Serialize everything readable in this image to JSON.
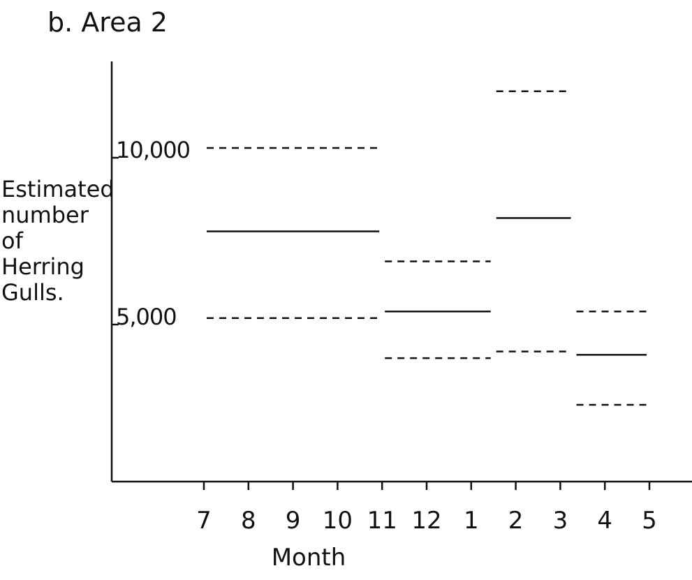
{
  "chart_data": {
    "type": "line",
    "title": "b. Area 2",
    "xlabel": "Month",
    "ylabel": [
      "Estimated",
      "number",
      "of",
      "Herring",
      "Gulls."
    ],
    "x_ticks": [
      "7",
      "8",
      "9",
      "10",
      "11",
      "12",
      "1",
      "2",
      "3",
      "4",
      "5"
    ],
    "y_ticks": [
      {
        "value": 5000,
        "label": "5,000"
      },
      {
        "value": 10000,
        "label": "10,000"
      }
    ],
    "ylim": [
      0,
      13000
    ],
    "segments": [
      {
        "from": "7",
        "to": "11",
        "estimate": 7500,
        "lower": 4900,
        "upper": 10000
      },
      {
        "from": "11",
        "to": "1.5",
        "estimate": 5100,
        "lower": 3700,
        "upper": 6600
      },
      {
        "from": "1.5",
        "to": "3.3",
        "estimate": 7900,
        "lower": 3900,
        "upper": 11700
      },
      {
        "from": "3.3",
        "to": "5",
        "estimate": 3800,
        "lower": 2300,
        "upper": 5100
      }
    ],
    "legend": "none",
    "grid": false
  }
}
